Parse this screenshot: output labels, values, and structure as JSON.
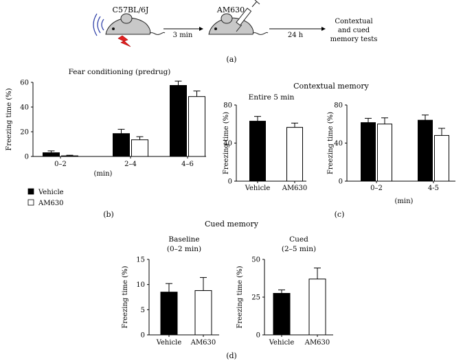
{
  "schematic": {
    "strain": "C57BL/6J",
    "drug": "AM630",
    "step1_time": "3 min",
    "step2_time": "24 h",
    "outcome_lines": [
      "Contextual",
      "and cued",
      "memory tests"
    ],
    "panel_label": "(a)"
  },
  "legend": {
    "items": [
      "Vehicle",
      "AM630"
    ],
    "colors": [
      "#000000",
      "#ffffff"
    ]
  },
  "labels": {
    "b": "(b)",
    "c": "(c)",
    "d": "(d)",
    "contextual_title": "Contextual memory",
    "cued_title": "Cued memory",
    "min_b": "(min)",
    "min_c": "(min)"
  },
  "chart_data": [
    {
      "id": "b",
      "type": "bar",
      "title": "Fear conditioning (predrug)",
      "xlabel": "(min)",
      "ylabel": "Freezing time (%)",
      "ylim": [
        0,
        60
      ],
      "yticks": [
        0,
        20,
        40,
        60
      ],
      "categories": [
        "0–2",
        "2–4",
        "4–6"
      ],
      "series": [
        {
          "name": "Vehicle",
          "values": [
            3,
            18.5,
            57.5
          ],
          "errors": [
            1.5,
            3.5,
            3.5
          ]
        },
        {
          "name": "AM630",
          "values": [
            0.5,
            13.5,
            48.5
          ],
          "errors": [
            0.5,
            2.5,
            4.5
          ]
        }
      ]
    },
    {
      "id": "c1",
      "type": "bar",
      "title": "Entire 5 min",
      "xlabel": "",
      "ylabel": "Freezing time (%)",
      "ylim": [
        0,
        80
      ],
      "yticks": [
        0,
        40,
        80
      ],
      "categories": [
        "Vehicle",
        "AM630"
      ],
      "values": [
        63,
        56.5
      ],
      "errors": [
        5,
        4.5
      ]
    },
    {
      "id": "c2",
      "type": "bar",
      "title": "",
      "xlabel": "(min)",
      "ylabel": "Freezing time (%)",
      "ylim": [
        0,
        80
      ],
      "yticks": [
        0,
        40,
        80
      ],
      "categories": [
        "0–2",
        "4-5"
      ],
      "series": [
        {
          "name": "Vehicle",
          "values": [
            61.5,
            64
          ],
          "errors": [
            4.5,
            5.5
          ]
        },
        {
          "name": "AM630",
          "values": [
            60,
            48
          ],
          "errors": [
            6.5,
            7.5
          ]
        }
      ]
    },
    {
      "id": "d1",
      "type": "bar",
      "title": "Baseline",
      "subtitle": "(0–2 min)",
      "xlabel": "",
      "ylabel": "Freezing time (%)",
      "ylim": [
        0,
        15
      ],
      "yticks": [
        0,
        5,
        10,
        15
      ],
      "categories": [
        "Vehicle",
        "AM630"
      ],
      "values": [
        8.5,
        8.8
      ],
      "errors": [
        1.7,
        2.6
      ]
    },
    {
      "id": "d2",
      "type": "bar",
      "title": "Cued",
      "subtitle": "(2–5 min)",
      "xlabel": "",
      "ylabel": "Freezing time (%)",
      "ylim": [
        0,
        50
      ],
      "yticks": [
        0,
        25,
        50
      ],
      "categories": [
        "Vehicle",
        "AM630"
      ],
      "values": [
        27.5,
        37
      ],
      "errors": [
        2.3,
        7.3
      ]
    }
  ]
}
